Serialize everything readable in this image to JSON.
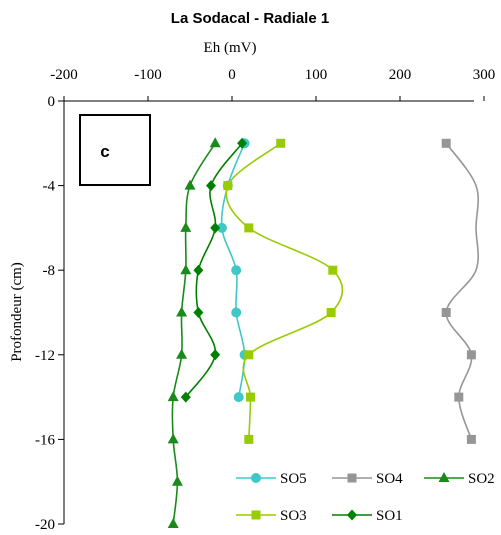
{
  "chart_data": {
    "type": "line",
    "title": "La Sodacal - Radiale 1",
    "xlabel": "Eh (mV)",
    "ylabel": "Profondeur (cm)",
    "panel_label": "c",
    "xlim": [
      -200,
      300
    ],
    "ylim": [
      -20,
      0
    ],
    "x_ticks": [
      "-200",
      "-100",
      "0",
      "100",
      "200",
      "300"
    ],
    "y_ticks": [
      "0",
      "-4",
      "-8",
      "-12",
      "-16",
      "-20"
    ],
    "grid": false,
    "x_axis_position": "top",
    "legend_placement": "bottom-right",
    "series": [
      {
        "name": "SO5",
        "color": "#40c8c8",
        "marker": "circle",
        "points": [
          [
            15,
            -2
          ],
          [
            -5,
            -4
          ],
          [
            -12,
            -6
          ],
          [
            5,
            -8
          ],
          [
            5,
            -10
          ],
          [
            15,
            -12
          ],
          [
            8,
            -14
          ]
        ]
      },
      {
        "name": "SO4",
        "color": "#969696",
        "marker": "square",
        "points": [
          [
            255,
            -2
          ],
          [
            300,
            -4
          ],
          [
            305,
            -6
          ],
          [
            310,
            -8
          ],
          [
            255,
            -10
          ],
          [
            285,
            -12
          ],
          [
            270,
            -14
          ],
          [
            285,
            -16
          ]
        ]
      },
      {
        "name": "SO2",
        "color": "#1a8a1a",
        "marker": "triangle",
        "points": [
          [
            -20,
            -2
          ],
          [
            -50,
            -4
          ],
          [
            -55,
            -6
          ],
          [
            -55,
            -8
          ],
          [
            -60,
            -10
          ],
          [
            -60,
            -12
          ],
          [
            -70,
            -14
          ],
          [
            -70,
            -16
          ],
          [
            -65,
            -18
          ],
          [
            -70,
            -20
          ]
        ]
      },
      {
        "name": "SO3",
        "color": "#99cc00",
        "marker": "square",
        "points": [
          [
            58,
            -2
          ],
          [
            -5,
            -4
          ],
          [
            20,
            -6
          ],
          [
            120,
            -8
          ],
          [
            118,
            -10
          ],
          [
            20,
            -12
          ],
          [
            22,
            -14
          ],
          [
            20,
            -16
          ]
        ]
      },
      {
        "name": "SO1",
        "color": "#008000",
        "marker": "diamond",
        "points": [
          [
            12,
            -2
          ],
          [
            -25,
            -4
          ],
          [
            -20,
            -6
          ],
          [
            -40,
            -8
          ],
          [
            -40,
            -10
          ],
          [
            -20,
            -12
          ],
          [
            -55,
            -14
          ]
        ]
      }
    ]
  }
}
